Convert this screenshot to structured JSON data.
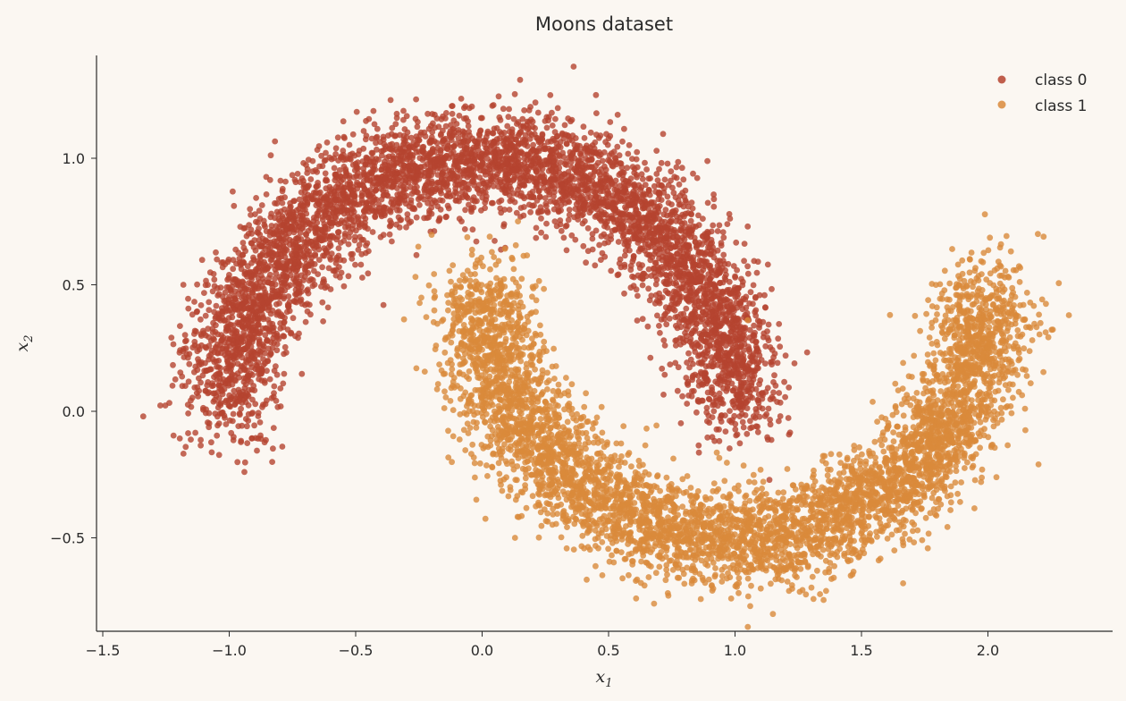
{
  "chart_data": {
    "type": "scatter",
    "title": "Moons dataset",
    "xlabel": {
      "base": "x",
      "sub": "1"
    },
    "ylabel": {
      "base": "x",
      "sub": "2"
    },
    "xlim": [
      -1.52,
      2.48
    ],
    "ylim": [
      -0.87,
      1.4
    ],
    "xticks": [
      -1.5,
      -1.0,
      -0.5,
      0.0,
      0.5,
      1.0,
      1.5,
      2.0
    ],
    "xtick_labels": [
      "−1.5",
      "−1.0",
      "−0.5",
      "0.0",
      "0.5",
      "1.0",
      "1.5",
      "2.0"
    ],
    "yticks": [
      -0.5,
      0.0,
      0.5,
      1.0
    ],
    "ytick_labels": [
      "−0.5",
      "0.0",
      "0.5",
      "1.0"
    ],
    "grid": false,
    "legend_position": "top-right",
    "noise": 0.1,
    "series": [
      {
        "name": "class 0",
        "color": "#b5432f",
        "curve": {
          "cx": 0.0,
          "cy": 0.0,
          "radius": 1.0,
          "theta_start_deg": 0,
          "theta_end_deg": 180,
          "direction": "upper"
        },
        "sample_count": 5000,
        "points": [
          [
            -1.34,
            -0.02
          ],
          [
            -0.39,
            0.42
          ],
          [
            -0.83,
            -0.2
          ],
          [
            0.45,
            1.25
          ],
          [
            0.15,
            1.31
          ],
          [
            0.81,
            0.03
          ],
          [
            1.2,
            0.22
          ],
          [
            0.89,
            0.69
          ],
          [
            -0.94,
            -0.24
          ],
          [
            1.13,
            0.58
          ]
        ]
      },
      {
        "name": "class 1",
        "color": "#d98a3b",
        "curve": {
          "cx": 1.0,
          "cy": 0.5,
          "radius": 1.0,
          "theta_start_deg": 0,
          "theta_end_deg": 180,
          "direction": "lower"
        },
        "sample_count": 5000,
        "points": [
          [
            0.03,
            0.69
          ],
          [
            2.22,
            0.69
          ],
          [
            2.32,
            0.38
          ],
          [
            2.2,
            -0.21
          ],
          [
            0.68,
            -0.76
          ],
          [
            1.06,
            -0.77
          ],
          [
            1.05,
            0.36
          ],
          [
            0.13,
            -0.5
          ],
          [
            -0.26,
            0.17
          ],
          [
            1.36,
            -0.71
          ]
        ]
      }
    ]
  }
}
